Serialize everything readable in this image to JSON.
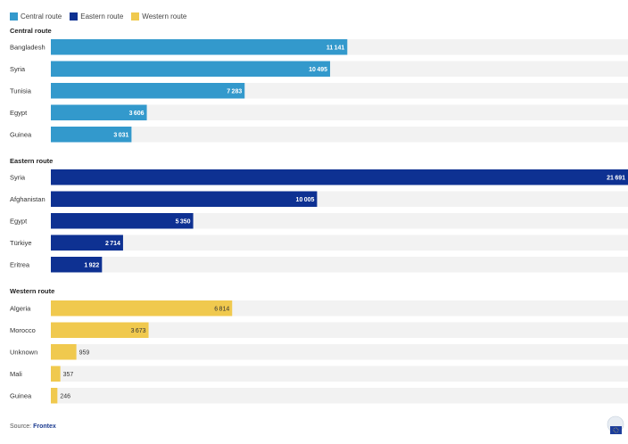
{
  "legend": [
    {
      "label": "Central route",
      "color": "#3399cc"
    },
    {
      "label": "Eastern route",
      "color": "#0e3192"
    },
    {
      "label": "Western route",
      "color": "#f0c94e"
    }
  ],
  "source": {
    "prefix": "Source:",
    "name": "Frontex"
  },
  "logo": {
    "icon": "eu-flag-icon"
  },
  "chart_data": {
    "type": "bar",
    "orientation": "horizontal",
    "xlim": [
      0,
      21691
    ],
    "groups": [
      {
        "name": "Central route",
        "color": "#3399cc",
        "label_color": "#ffffff",
        "categories": [
          "Bangladesh",
          "Syria",
          "Tunisia",
          "Egypt",
          "Guinea"
        ],
        "values": [
          11141,
          10495,
          7283,
          3606,
          3031
        ]
      },
      {
        "name": "Eastern route",
        "color": "#0e3192",
        "label_color": "#ffffff",
        "categories": [
          "Syria",
          "Afghanistan",
          "Egypt",
          "Türkiye",
          "Eritrea"
        ],
        "values": [
          21691,
          10005,
          5350,
          2714,
          1922
        ]
      },
      {
        "name": "Western route",
        "color": "#f0c94e",
        "label_color": "#333333",
        "categories": [
          "Algeria",
          "Morocco",
          "Unknown",
          "Mali",
          "Guinea"
        ],
        "values": [
          6814,
          3673,
          959,
          357,
          246
        ]
      }
    ]
  }
}
